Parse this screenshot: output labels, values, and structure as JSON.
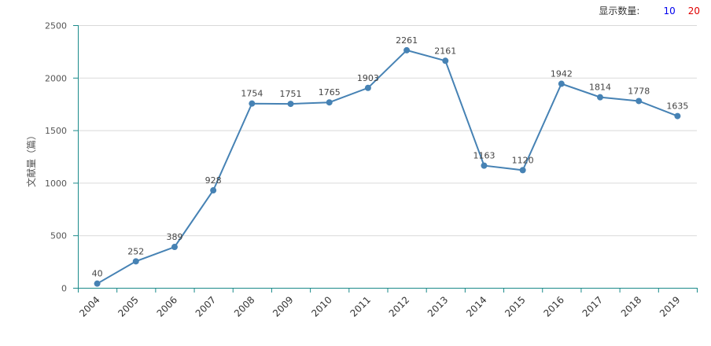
{
  "header": {
    "display_label": "显示数量:",
    "options": [
      "10",
      "20"
    ]
  },
  "chart_data": {
    "type": "line",
    "title": "",
    "xlabel": "",
    "ylabel": "文献量（篇）",
    "categories": [
      "2004",
      "2005",
      "2006",
      "2007",
      "2008",
      "2009",
      "2010",
      "2011",
      "2012",
      "2013",
      "2014",
      "2015",
      "2016",
      "2017",
      "2018",
      "2019"
    ],
    "series": [
      {
        "name": "文献量",
        "values": [
          40,
          252,
          389,
          928,
          1754,
          1751,
          1765,
          1903,
          2261,
          2161,
          1163,
          1120,
          1942,
          1814,
          1778,
          1635
        ]
      }
    ],
    "ylim": [
      0,
      2500
    ],
    "yticks": [
      0,
      500,
      1000,
      1500,
      2000,
      2500
    ],
    "grid": true,
    "line_color": "#4682b4",
    "axis_color": "#1a8a8a"
  }
}
